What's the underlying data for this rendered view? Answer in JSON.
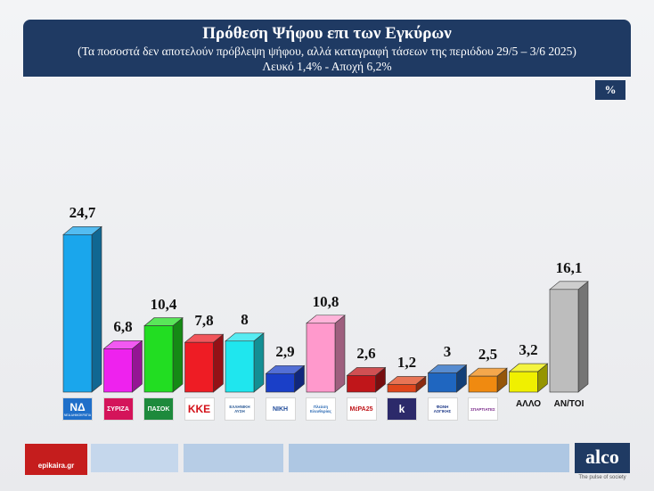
{
  "header": {
    "title": "Πρόθεση Ψήφου επι των Εγκύρων",
    "subtitle": "(Τα ποσοστά δεν αποτελούν πρόβλεψη ψήφου, αλλά καταγραφή τάσεων της περιόδου  29/5 – 3/6 2025)",
    "note": "Λευκό 1,4% - Αποχή 6,2%"
  },
  "unit_badge": "%",
  "chart_data": {
    "type": "bar",
    "title": "Πρόθεση Ψήφου επι των Εγκύρων",
    "subtitle": "(Τα ποσοστά δεν αποτελούν πρόβλεψη ψήφου, αλλά καταγραφή τάσεων της περιόδου  29/5 – 3/6 2025)",
    "xlabel": "",
    "ylabel": "",
    "ylim": [
      0,
      26
    ],
    "grid": false,
    "bar_style": "3d",
    "categories": [
      "ΝΔ",
      "ΣΥΡΙΖΑ",
      "ΠΑΣΟΚ",
      "ΚΚΕ",
      "ΕΛΛΗΝΙΚΗ ΛΥΣΗ",
      "ΝΙΚΗ",
      "ΠΛΕΥΣΗ ΕΛΕΥΘΕΡΙΑΣ",
      "ΜέΡΑ25",
      "ΚΙΝΗΜΑ ΔΗΜΟΚΡΑΤΙΑΣ",
      "ΦΩΝΗ ΛΟΓΙΚΗΣ",
      "ΣΠΑΡΤΙΑΤΕΣ",
      "ΑΛΛΟ",
      "ΑΝ/ΤΟΙ"
    ],
    "values": [
      24.7,
      6.8,
      10.4,
      7.8,
      8.0,
      2.9,
      10.8,
      2.6,
      1.2,
      3.0,
      2.5,
      3.2,
      16.1
    ],
    "value_labels": [
      "24,7",
      "6,8",
      "10,4",
      "7,8",
      "8",
      "2,9",
      "10,8",
      "2,6",
      "1,2",
      "3",
      "2,5",
      "3,2",
      "16,1"
    ],
    "colors": [
      "#1aa6ec",
      "#ee22ee",
      "#22dd22",
      "#ee1c24",
      "#1fe6ee",
      "#1a3fc8",
      "#ff99cc",
      "#c0161a",
      "#e0461c",
      "#1f66c0",
      "#f08a10",
      "#f0f000",
      "#bdbdbd"
    ],
    "logos": [
      {
        "text": "ΝΔ",
        "sub": "ΝΕΑ ΔΗΜΟΚΡΑΤΙΑ",
        "bg": "#1f6fc9",
        "fg": "#ffffff"
      },
      {
        "text": "ΣΥΡΙΖΑ",
        "sub": "",
        "bg": "#d4145a",
        "fg": "#ffffff"
      },
      {
        "text": "ΠΑΣΟΚ",
        "sub": "",
        "bg": "#1d8a3c",
        "fg": "#ffffff"
      },
      {
        "text": "ΚΚΕ",
        "sub": "",
        "bg": "#ffffff",
        "fg": "#d4121a"
      },
      {
        "text": "ΕΛΛΗΝΙΚΗ ΛΥΣΗ",
        "sub": "",
        "bg": "#ffffff",
        "fg": "#2c5b96"
      },
      {
        "text": "ΝΙΚΗ",
        "sub": "",
        "bg": "#ffffff",
        "fg": "#1e4a99"
      },
      {
        "text": "Πλεύση Ελευθερίας",
        "sub": "",
        "bg": "#ffffff",
        "fg": "#2d6bb4"
      },
      {
        "text": "ΜέΡΑ25",
        "sub": "",
        "bg": "#ffffff",
        "fg": "#c0161a"
      },
      {
        "text": "k",
        "sub": "",
        "bg": "#2c2a6a",
        "fg": "#ffffff"
      },
      {
        "text": "ΦΩΝΗ ΛΟΓΙΚΗΣ",
        "sub": "",
        "bg": "#ffffff",
        "fg": "#1f3a88"
      },
      {
        "text": "ΣΠΑΡΤΙΑΤΕΣ",
        "sub": "",
        "bg": "#ffffff",
        "fg": "#7a2a8a"
      },
      {
        "text": "ΑΛΛΟ",
        "sub": "",
        "bg": "",
        "fg": "#111111"
      },
      {
        "text": "ΑΝ/ΤΟΙ",
        "sub": "",
        "bg": "",
        "fg": "#111111"
      }
    ]
  },
  "footer": {
    "source_logo": "epikaira.gr",
    "brand": "alco",
    "tagline": "The pulse of society",
    "bar_colors": [
      "#c5d7ec",
      "#b7cde6",
      "#aec7e3"
    ]
  }
}
